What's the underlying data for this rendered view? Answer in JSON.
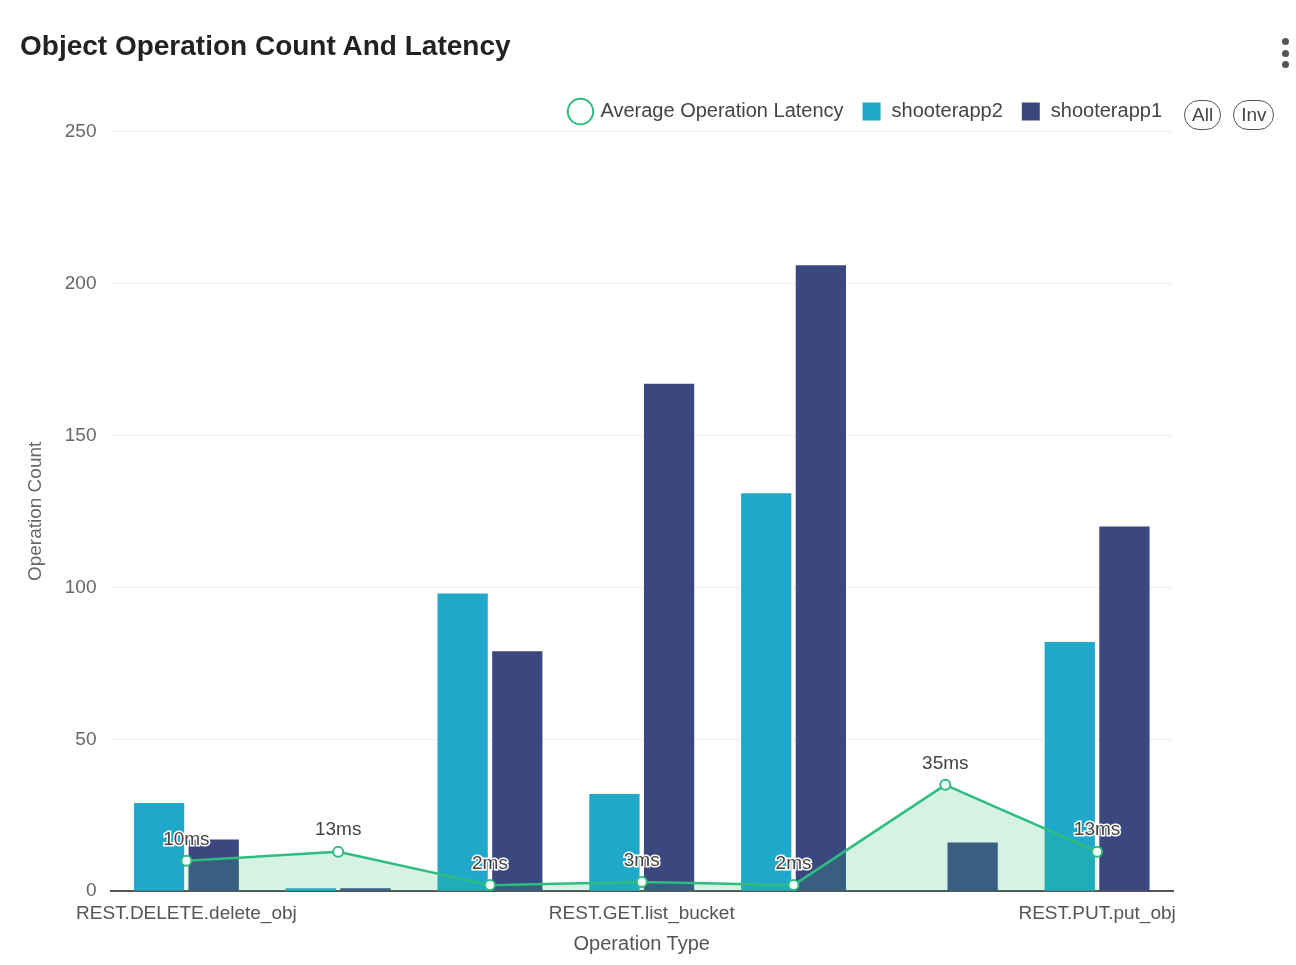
{
  "chart_data": {
    "type": "bar",
    "title": "Object Operation Count And Latency",
    "xlabel": "Operation Type",
    "ylabel": "Operation Count",
    "categories": [
      "REST.DELETE.delete_obj",
      null,
      null,
      "REST.GET.list_bucket",
      null,
      null,
      "REST.PUT.put_obj"
    ],
    "series": [
      {
        "name": "shooterapp2",
        "color": "#1fa8ca",
        "values": [
          29,
          1,
          98,
          32,
          131,
          null,
          82
        ]
      },
      {
        "name": "shooterapp1",
        "color": "#3b4880",
        "values": [
          17,
          1,
          79,
          167,
          206,
          16,
          120
        ]
      },
      {
        "name": "Average Operation Latency",
        "type": "area",
        "color": "#2fbd7f",
        "values": [
          10,
          13,
          2,
          3,
          2,
          35,
          13
        ],
        "value_labels": [
          "10ms",
          "13ms",
          "2ms",
          "3ms",
          "2ms",
          "35ms",
          "13ms"
        ]
      }
    ],
    "ylim": [
      0,
      250
    ],
    "yticks": [
      0,
      50,
      100,
      150,
      200,
      250
    ],
    "grid": "y",
    "legend": "top right",
    "marker": "circle",
    "annotations": [
      "All",
      "Inv"
    ]
  }
}
